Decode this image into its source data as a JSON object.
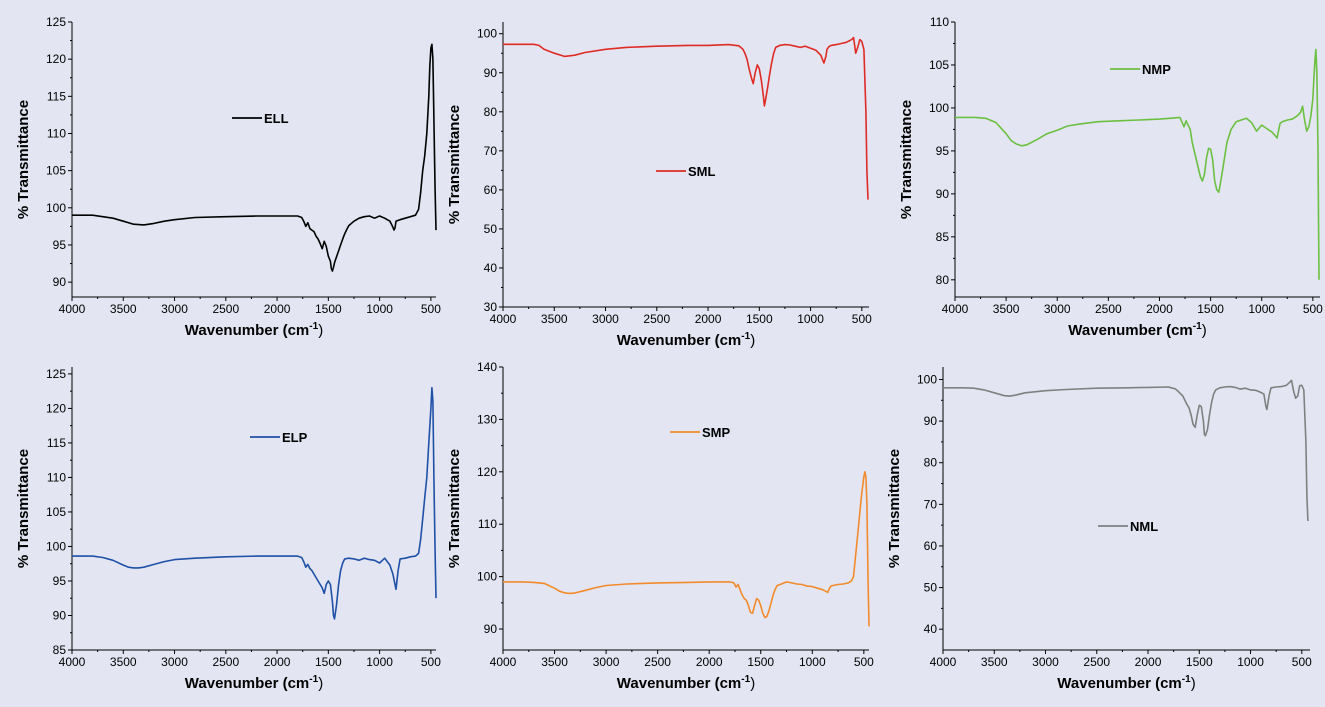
{
  "chart_data": [
    {
      "type": "line",
      "legend": "ELL",
      "color": "#000000",
      "xlabel": "Wavenumber (cm",
      "xlabel_sup": "-1",
      "xlabel_end": ")",
      "ylabel": "% Transmittance",
      "xlim": [
        4000,
        450
      ],
      "ylim": [
        88,
        125
      ],
      "xticks": [
        4000,
        3500,
        3000,
        2500,
        2000,
        1500,
        1000,
        500
      ],
      "yticks": [
        90,
        95,
        100,
        105,
        110,
        115,
        120,
        125
      ],
      "series": [
        {
          "x": [
            4000,
            3900,
            3800,
            3700,
            3600,
            3500,
            3400,
            3300,
            3200,
            3100,
            3000,
            2800,
            2500,
            2200,
            2000,
            1800,
            1760,
            1740,
            1720,
            1700,
            1680,
            1660,
            1640,
            1620,
            1600,
            1580,
            1560,
            1540,
            1520,
            1500,
            1480,
            1470,
            1460,
            1450,
            1440,
            1420,
            1400,
            1380,
            1360,
            1340,
            1320,
            1300,
            1250,
            1200,
            1150,
            1100,
            1050,
            1000,
            950,
            900,
            870,
            860,
            850,
            840,
            820,
            800,
            750,
            700,
            650,
            620,
            600,
            580,
            560,
            540,
            520,
            510,
            500,
            490,
            480,
            470,
            460,
            450
          ],
          "y": [
            99,
            99,
            99,
            98.8,
            98.6,
            98.2,
            97.8,
            97.7,
            97.9,
            98.2,
            98.4,
            98.7,
            98.8,
            98.9,
            98.9,
            98.9,
            98.7,
            98.2,
            97.5,
            98,
            97.2,
            97,
            96.8,
            96.2,
            95.8,
            95.2,
            94.5,
            95.5,
            94.8,
            93.5,
            92.8,
            91.8,
            91.5,
            92,
            92.6,
            93.4,
            94.2,
            95,
            95.8,
            96.5,
            97.1,
            97.6,
            98.2,
            98.6,
            98.8,
            98.9,
            98.6,
            98.9,
            98.6,
            98.2,
            97.4,
            97,
            97.3,
            98.2,
            98.3,
            98.4,
            98.6,
            98.8,
            99,
            99.8,
            102,
            105,
            107,
            110,
            115,
            119,
            121.5,
            122,
            120,
            112,
            103,
            97
          ]
        }
      ]
    },
    {
      "type": "line",
      "legend": "SML",
      "color": "#e02a24",
      "xlabel": "Wavenumber (cm",
      "xlabel_sup": "-1",
      "xlabel_end": ")",
      "ylabel": "% Transmittance",
      "xlim": [
        4000,
        430
      ],
      "ylim": [
        30,
        103
      ],
      "xticks": [
        4000,
        3500,
        3000,
        2500,
        2000,
        1500,
        1000,
        500
      ],
      "yticks": [
        30,
        40,
        50,
        60,
        70,
        80,
        90,
        100
      ],
      "series": [
        {
          "x": [
            4000,
            3800,
            3700,
            3650,
            3600,
            3500,
            3400,
            3300,
            3200,
            3000,
            2800,
            2500,
            2200,
            2000,
            1800,
            1700,
            1680,
            1660,
            1640,
            1620,
            1600,
            1580,
            1560,
            1540,
            1520,
            1500,
            1480,
            1460,
            1450,
            1440,
            1420,
            1400,
            1380,
            1360,
            1340,
            1300,
            1250,
            1200,
            1150,
            1100,
            1050,
            1000,
            950,
            900,
            870,
            850,
            840,
            820,
            800,
            750,
            700,
            650,
            600,
            580,
            560,
            540,
            520,
            500,
            480,
            460,
            450,
            440
          ],
          "y": [
            97.3,
            97.3,
            97.3,
            97,
            96,
            95,
            94.2,
            94.5,
            95.2,
            96,
            96.5,
            96.8,
            97,
            97,
            97.2,
            96.9,
            96.5,
            96,
            95,
            93.5,
            91,
            89,
            87.2,
            90,
            92,
            91,
            88,
            84,
            81.5,
            83,
            86,
            89.5,
            92.5,
            95,
            96.5,
            97,
            97.2,
            97.1,
            96.8,
            96.5,
            96.8,
            96.3,
            95.8,
            94.5,
            92.5,
            94.2,
            96,
            96.7,
            97,
            97.2,
            97.5,
            97.8,
            98.5,
            99,
            95,
            96.5,
            98.5,
            98,
            96,
            80,
            65,
            57.5
          ]
        }
      ]
    },
    {
      "type": "line",
      "legend": "NMP",
      "color": "#6cc041",
      "xlabel": "Wavenumber (cm",
      "xlabel_sup": "-1",
      "xlabel_end": ")",
      "ylabel": "% Transmittance",
      "xlim": [
        4000,
        430
      ],
      "ylim": [
        78,
        110
      ],
      "xticks": [
        4000,
        3500,
        3000,
        2500,
        2000,
        1500,
        1000,
        500
      ],
      "yticks": [
        80,
        85,
        90,
        95,
        100,
        105,
        110
      ],
      "series": [
        {
          "x": [
            4000,
            3800,
            3700,
            3600,
            3500,
            3450,
            3400,
            3350,
            3300,
            3200,
            3100,
            3000,
            2900,
            2800,
            2600,
            2400,
            2200,
            2000,
            1900,
            1800,
            1760,
            1740,
            1720,
            1700,
            1680,
            1660,
            1640,
            1620,
            1600,
            1580,
            1560,
            1540,
            1520,
            1500,
            1480,
            1460,
            1440,
            1420,
            1400,
            1380,
            1360,
            1340,
            1300,
            1250,
            1200,
            1150,
            1100,
            1050,
            1000,
            950,
            900,
            870,
            850,
            840,
            820,
            800,
            750,
            700,
            650,
            620,
            600,
            580,
            560,
            540,
            520,
            500,
            490,
            480,
            470,
            460,
            450,
            440
          ],
          "y": [
            98.9,
            98.9,
            98.8,
            98.3,
            97,
            96.2,
            95.8,
            95.6,
            95.7,
            96.3,
            97,
            97.4,
            97.9,
            98.1,
            98.4,
            98.5,
            98.6,
            98.7,
            98.8,
            98.9,
            97.8,
            98.5,
            98,
            97.5,
            96,
            95,
            94,
            93,
            92,
            91.5,
            92.3,
            94.2,
            95.3,
            95.2,
            94,
            91.5,
            90.5,
            90.2,
            91.5,
            93,
            94.5,
            96,
            97.5,
            98.4,
            98.6,
            98.8,
            98.3,
            97.3,
            98,
            97.6,
            97.2,
            96.8,
            96.5,
            97.1,
            98.2,
            98.4,
            98.6,
            98.7,
            99.1,
            99.5,
            100.2,
            98.5,
            97.3,
            97.8,
            99,
            101,
            103.5,
            105.5,
            106.8,
            104,
            95,
            80
          ]
        }
      ]
    },
    {
      "type": "line",
      "legend": "ELP",
      "color": "#1f50a7",
      "xlabel": "Wavenumber (cm",
      "xlabel_sup": "-1",
      "xlabel_end": ")",
      "ylabel": "% Transmittance",
      "xlim": [
        4000,
        450
      ],
      "ylim": [
        85,
        126
      ],
      "xticks": [
        4000,
        3500,
        3000,
        2500,
        2000,
        1500,
        1000,
        500
      ],
      "yticks": [
        85,
        90,
        95,
        100,
        105,
        110,
        115,
        120,
        125
      ],
      "series": [
        {
          "x": [
            4000,
            3900,
            3800,
            3700,
            3600,
            3500,
            3450,
            3400,
            3350,
            3300,
            3200,
            3100,
            3000,
            2800,
            2500,
            2200,
            2000,
            1800,
            1760,
            1740,
            1720,
            1700,
            1680,
            1660,
            1640,
            1620,
            1600,
            1580,
            1560,
            1540,
            1520,
            1500,
            1480,
            1460,
            1450,
            1440,
            1420,
            1400,
            1380,
            1360,
            1340,
            1300,
            1250,
            1200,
            1150,
            1100,
            1050,
            1000,
            950,
            900,
            870,
            850,
            840,
            820,
            800,
            750,
            700,
            650,
            620,
            600,
            580,
            560,
            540,
            520,
            500,
            490,
            480,
            470,
            460,
            450
          ],
          "y": [
            98.6,
            98.6,
            98.6,
            98.4,
            98,
            97.3,
            97,
            96.9,
            96.9,
            97,
            97.4,
            97.8,
            98.1,
            98.3,
            98.5,
            98.6,
            98.6,
            98.6,
            98.4,
            97.8,
            97,
            97.4,
            96.8,
            96.5,
            96,
            95.5,
            95,
            94.5,
            94,
            93.2,
            94.5,
            95,
            94.5,
            92,
            90,
            89.5,
            91.5,
            94.5,
            96.5,
            97.6,
            98.2,
            98.3,
            98.2,
            98,
            98.3,
            98.1,
            98,
            97.6,
            98.3,
            97.3,
            96,
            94.5,
            93.8,
            96.5,
            98.2,
            98.3,
            98.5,
            98.6,
            99,
            101,
            104,
            107,
            110,
            115,
            120,
            123,
            121,
            110,
            100,
            92.5
          ]
        }
      ]
    },
    {
      "type": "line",
      "legend": "SMP",
      "color": "#f28a2c",
      "xlabel": "Wavenumber (cm",
      "xlabel_sup": "-1",
      "xlabel_end": ")",
      "ylabel": "% Transmittance",
      "xlim": [
        4000,
        450
      ],
      "ylim": [
        86,
        140
      ],
      "xticks": [
        4000,
        3500,
        3000,
        2500,
        2000,
        1500,
        1000,
        500
      ],
      "yticks": [
        90,
        100,
        110,
        120,
        130,
        140
      ],
      "series": [
        {
          "x": [
            4000,
            3800,
            3700,
            3600,
            3500,
            3450,
            3400,
            3350,
            3300,
            3200,
            3100,
            3000,
            2800,
            2500,
            2200,
            2000,
            1800,
            1760,
            1740,
            1720,
            1700,
            1680,
            1660,
            1640,
            1620,
            1600,
            1580,
            1560,
            1540,
            1520,
            1500,
            1480,
            1460,
            1440,
            1420,
            1400,
            1380,
            1360,
            1340,
            1300,
            1250,
            1200,
            1150,
            1100,
            1050,
            1000,
            950,
            900,
            870,
            850,
            840,
            820,
            800,
            750,
            700,
            650,
            620,
            600,
            580,
            560,
            540,
            520,
            500,
            490,
            480,
            470,
            460,
            450
          ],
          "y": [
            99,
            99,
            98.9,
            98.7,
            97.8,
            97.2,
            96.9,
            96.8,
            96.9,
            97.4,
            97.9,
            98.3,
            98.6,
            98.8,
            98.9,
            99,
            99,
            98.8,
            98,
            98.5,
            97.5,
            96.5,
            95.8,
            95.5,
            94.5,
            93.2,
            93,
            94.5,
            95.8,
            95.5,
            94.5,
            93,
            92.2,
            92.4,
            93.5,
            95,
            96.5,
            97.6,
            98.3,
            98.6,
            99,
            98.8,
            98.6,
            98.5,
            98.2,
            98.1,
            97.8,
            97.5,
            97.2,
            97,
            97.5,
            98.2,
            98.3,
            98.5,
            98.6,
            98.8,
            99.2,
            100,
            104,
            108,
            112,
            116,
            119,
            120,
            119,
            114,
            100,
            90.5
          ]
        }
      ]
    },
    {
      "type": "line",
      "legend": "NML",
      "color": "#808080",
      "xlabel": "Wavenumber (cm",
      "xlabel_sup": "-1",
      "xlabel_end": ")",
      "ylabel": "% Transmittance",
      "xlim": [
        4000,
        420
      ],
      "ylim": [
        35,
        103
      ],
      "xticks": [
        4000,
        3500,
        3000,
        2500,
        2000,
        1500,
        1000,
        500
      ],
      "yticks": [
        40,
        50,
        60,
        70,
        80,
        90,
        100
      ],
      "series": [
        {
          "x": [
            4000,
            3800,
            3700,
            3600,
            3500,
            3400,
            3350,
            3300,
            3200,
            3000,
            2800,
            2500,
            2200,
            2000,
            1800,
            1760,
            1740,
            1720,
            1700,
            1680,
            1660,
            1640,
            1620,
            1600,
            1580,
            1560,
            1540,
            1520,
            1500,
            1480,
            1460,
            1450,
            1440,
            1420,
            1400,
            1380,
            1360,
            1340,
            1300,
            1250,
            1200,
            1150,
            1100,
            1050,
            1000,
            950,
            900,
            870,
            850,
            840,
            820,
            800,
            750,
            700,
            650,
            620,
            600,
            580,
            560,
            540,
            520,
            500,
            480,
            460,
            450,
            440
          ],
          "y": [
            98,
            98,
            97.9,
            97.5,
            96.8,
            96.1,
            96,
            96.2,
            96.8,
            97.3,
            97.6,
            97.9,
            98,
            98.1,
            98.2,
            97.9,
            97.8,
            97.5,
            97,
            96.5,
            96,
            95,
            94,
            93.2,
            91.5,
            89.2,
            88.5,
            91.5,
            93.8,
            93.5,
            90,
            86.8,
            86.5,
            88,
            91.5,
            94.5,
            96.5,
            97.5,
            98,
            98.2,
            98.3,
            98.1,
            97.7,
            97.9,
            97.5,
            97.4,
            96.9,
            96.5,
            93.5,
            92.8,
            96,
            98,
            98.2,
            98.3,
            98.6,
            99.3,
            99.8,
            97.2,
            95.5,
            96,
            98.5,
            98.6,
            97.5,
            85,
            72,
            66
          ]
        }
      ]
    }
  ]
}
